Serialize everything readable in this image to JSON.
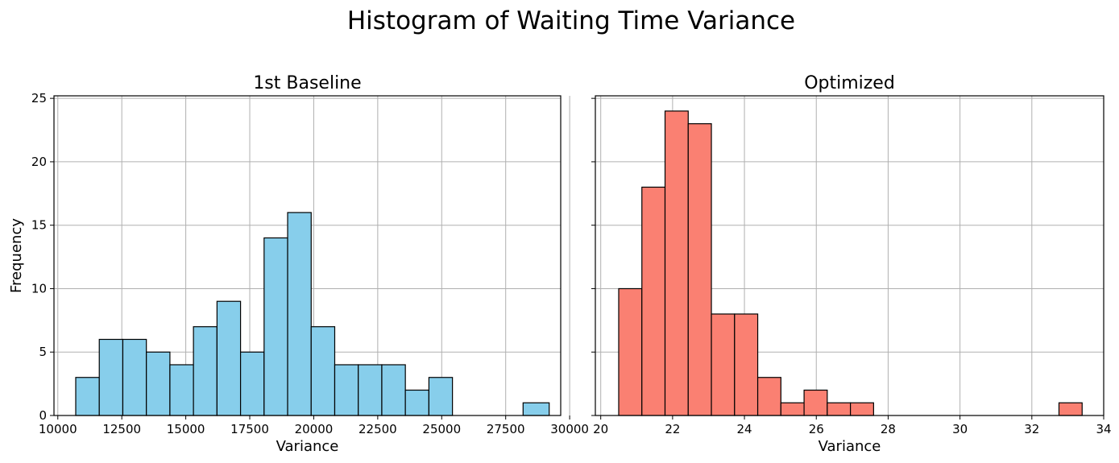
{
  "figure": {
    "suptitle": "Histogram of Waiting Time Variance"
  },
  "chart_data": [
    {
      "type": "bar",
      "title": "1st Baseline",
      "xlabel": "Variance",
      "ylabel": "Frequency",
      "color": "#87CEEB",
      "edge_color": "#000000",
      "grid": true,
      "xlim": [
        9850,
        29650
      ],
      "ylim": [
        0,
        25.2
      ],
      "xticks": [
        10000,
        12500,
        15000,
        17500,
        20000,
        22500,
        25000,
        27500,
        30000
      ],
      "yticks": [
        0,
        5,
        10,
        15,
        20,
        25
      ],
      "bin_edges": [
        10700,
        11620,
        12540,
        13460,
        14380,
        15300,
        16220,
        17140,
        18060,
        18980,
        19900,
        20820,
        21740,
        22660,
        23580,
        24500,
        25420,
        26340,
        27260,
        28180,
        29200
      ],
      "values": [
        3,
        6,
        6,
        5,
        4,
        7,
        9,
        5,
        14,
        16,
        7,
        4,
        4,
        4,
        2,
        3,
        0,
        0,
        0,
        1
      ]
    },
    {
      "type": "bar",
      "title": "Optimized",
      "xlabel": "Variance",
      "ylabel": "",
      "color": "#FA8072",
      "edge_color": "#000000",
      "grid": true,
      "xlim": [
        19.85,
        34.0
      ],
      "ylim": [
        0,
        25.2
      ],
      "xticks": [
        20,
        22,
        24,
        26,
        28,
        30,
        32,
        34
      ],
      "yticks": [
        0,
        5,
        10,
        15,
        20,
        25
      ],
      "bin_edges": [
        20.5,
        21.145,
        21.79,
        22.435,
        23.08,
        23.725,
        24.37,
        25.015,
        25.66,
        26.305,
        26.95,
        27.595,
        28.24,
        28.885,
        29.53,
        30.175,
        30.82,
        31.465,
        32.11,
        32.755,
        33.4
      ],
      "values": [
        10,
        18,
        24,
        23,
        8,
        8,
        3,
        1,
        2,
        1,
        1,
        0,
        0,
        0,
        0,
        0,
        0,
        0,
        0,
        1
      ]
    }
  ]
}
